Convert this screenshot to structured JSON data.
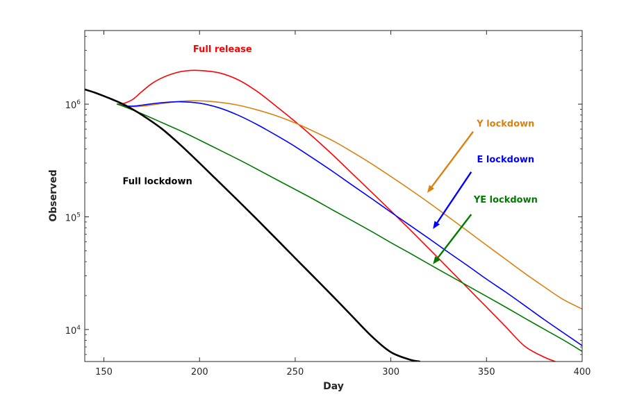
{
  "chart_data": {
    "type": "line",
    "xlabel": "Day",
    "ylabel": "Observed",
    "xlim": [
      140,
      400
    ],
    "ylim": [
      5200,
      4500000
    ],
    "yscale": "log",
    "grid": false,
    "xticks": [
      150,
      200,
      250,
      300,
      350,
      400
    ],
    "xtick_labels": [
      "150",
      "200",
      "250",
      "300",
      "350",
      "400"
    ],
    "yticks": [
      10000,
      100000,
      1000000
    ],
    "ytick_labels": [
      {
        "base": "10",
        "exp": "4"
      },
      {
        "base": "10",
        "exp": "5"
      },
      {
        "base": "10",
        "exp": "6"
      }
    ],
    "series": [
      {
        "name": "Full release",
        "color": "#ff0000",
        "x": [
          157,
          160,
          165,
          170,
          175,
          180,
          185,
          190,
          195,
          200,
          210,
          220,
          230,
          240,
          250,
          260,
          270,
          280,
          290,
          300,
          310,
          320,
          330,
          340,
          350,
          360,
          370,
          380,
          386
        ],
        "y": [
          1000000,
          1010000,
          1100000,
          1300000,
          1520000,
          1700000,
          1840000,
          1940000,
          1990000,
          1990000,
          1900000,
          1650000,
          1300000,
          960000,
          700000,
          500000,
          350000,
          240000,
          165000,
          113000,
          77000,
          52000,
          35000,
          23500,
          15800,
          10600,
          7100,
          5700,
          5200
        ]
      },
      {
        "name": "Y lockdown",
        "color": "#d9820f",
        "x": [
          157,
          160,
          165,
          170,
          180,
          190,
          200,
          210,
          220,
          230,
          240,
          250,
          260,
          270,
          280,
          290,
          300,
          310,
          320,
          330,
          340,
          350,
          360,
          370,
          380,
          390,
          400
        ],
        "y": [
          1000000,
          970000,
          950000,
          960000,
          1010000,
          1060000,
          1070000,
          1040000,
          980000,
          890000,
          790000,
          680000,
          570000,
          470000,
          375000,
          295000,
          228000,
          175000,
          133000,
          100000,
          75000,
          56000,
          42000,
          31500,
          24000,
          18500,
          15200
        ]
      },
      {
        "name": "E lockdown",
        "color": "#0000ff",
        "x": [
          157,
          160,
          165,
          170,
          180,
          190,
          200,
          210,
          220,
          230,
          240,
          250,
          260,
          270,
          280,
          290,
          300,
          310,
          320,
          330,
          340,
          350,
          360,
          370,
          380,
          390,
          400
        ],
        "y": [
          1000000,
          970000,
          960000,
          980000,
          1030000,
          1050000,
          1020000,
          930000,
          800000,
          660000,
          530000,
          420000,
          325000,
          250000,
          190000,
          145000,
          110000,
          84000,
          64000,
          48500,
          37000,
          28000,
          21500,
          16300,
          12300,
          9400,
          7200
        ]
      },
      {
        "name": "YE lockdown",
        "color": "#007a00",
        "x": [
          157,
          160,
          170,
          180,
          190,
          200,
          210,
          220,
          230,
          240,
          250,
          260,
          270,
          280,
          290,
          300,
          310,
          320,
          330,
          340,
          350,
          360,
          370,
          380,
          390,
          400
        ],
        "y": [
          1000000,
          960000,
          820000,
          690000,
          580000,
          480000,
          395000,
          325000,
          265000,
          215000,
          175000,
          142000,
          114000,
          92000,
          74000,
          59000,
          47500,
          38000,
          30500,
          24500,
          19700,
          15800,
          12600,
          10100,
          8100,
          6400
        ]
      },
      {
        "name": "Full lockdown",
        "color": "#000000",
        "x": [
          140,
          145,
          150,
          155,
          160,
          165,
          170,
          180,
          190,
          200,
          210,
          220,
          230,
          240,
          250,
          260,
          270,
          280,
          290,
          300,
          310,
          315
        ],
        "y": [
          1350000,
          1270000,
          1180000,
          1090000,
          1000000,
          900000,
          800000,
          610000,
          435000,
          300000,
          205000,
          140000,
          95000,
          64000,
          43000,
          29000,
          19500,
          13000,
          8700,
          6300,
          5400,
          5200
        ]
      }
    ],
    "annotations": [
      {
        "text": "Full release",
        "color": "#ff0000",
        "x": 212,
        "y": 2900000
      },
      {
        "text": "Y lockdown",
        "color": "#d9820f",
        "x": 360,
        "y": 630000
      },
      {
        "text": "E lockdown",
        "color": "#0000ff",
        "x": 360,
        "y": 305000
      },
      {
        "text": "YE lockdown",
        "color": "#007a00",
        "x": 360,
        "y": 134000
      },
      {
        "text": "Full lockdown",
        "color": "#000000",
        "x": 178,
        "y": 195000
      }
    ],
    "arrows": [
      {
        "color": "#d9820f",
        "from": [
          343,
          570000
        ],
        "to": [
          319,
          163000
        ]
      },
      {
        "color": "#0000ff",
        "from": [
          342,
          250000
        ],
        "to": [
          322,
          78000
        ]
      },
      {
        "color": "#007a00",
        "from": [
          342,
          105000
        ],
        "to": [
          322,
          38000
        ]
      }
    ]
  }
}
